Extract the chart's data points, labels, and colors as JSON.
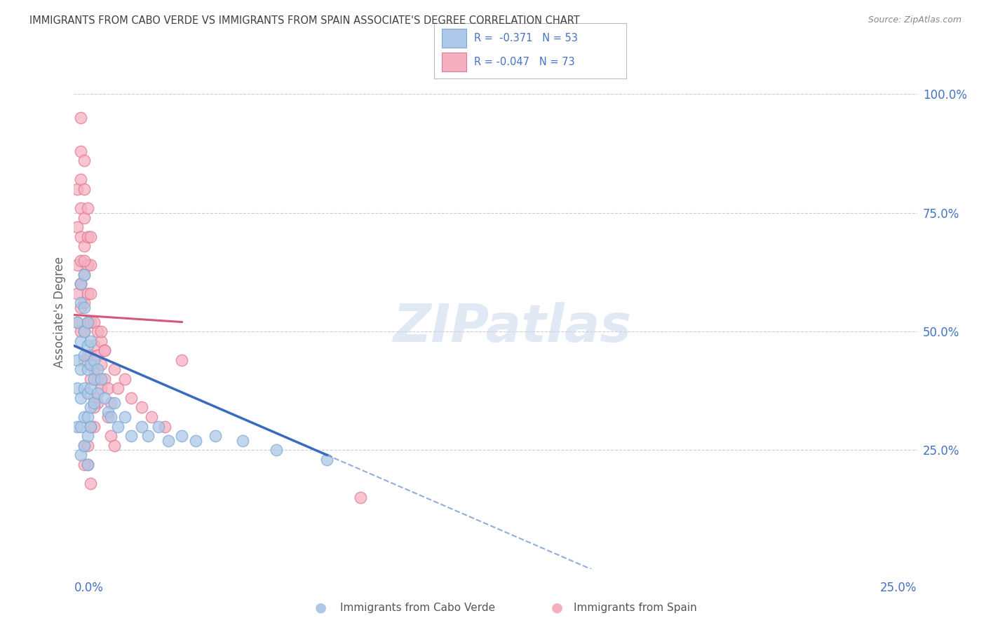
{
  "title": "IMMIGRANTS FROM CABO VERDE VS IMMIGRANTS FROM SPAIN ASSOCIATE'S DEGREE CORRELATION CHART",
  "source": "Source: ZipAtlas.com",
  "ylabel": "Associate's Degree",
  "ytick_labels": [
    "100.0%",
    "75.0%",
    "50.0%",
    "25.0%"
  ],
  "ytick_vals": [
    1.0,
    0.75,
    0.5,
    0.25
  ],
  "xtick_labels": [
    "0.0%",
    "25.0%"
  ],
  "xmin": 0.0,
  "xmax": 0.25,
  "ymin": 0.0,
  "ymax": 1.08,
  "legend_r1": "R =  -0.371",
  "legend_n1": "N = 53",
  "legend_r2": "R = -0.047",
  "legend_n2": "N = 73",
  "color_cabo_fill": "#adc8e8",
  "color_cabo_edge": "#7aaad0",
  "color_cabo_line": "#3a6abf",
  "color_spain_fill": "#f5b0c0",
  "color_spain_edge": "#e07898",
  "color_spain_line": "#d45878",
  "color_blue_text": "#4472c4",
  "color_title": "#404040",
  "color_source": "#888888",
  "color_grid": "#cccccc",
  "watermark_text": "ZIPatlas",
  "legend_label_cabo": "Immigrants from Cabo Verde",
  "legend_label_spain": "Immigrants from Spain",
  "cabo_x": [
    0.001,
    0.001,
    0.001,
    0.001,
    0.002,
    0.002,
    0.002,
    0.002,
    0.002,
    0.002,
    0.002,
    0.003,
    0.003,
    0.003,
    0.003,
    0.003,
    0.003,
    0.003,
    0.004,
    0.004,
    0.004,
    0.004,
    0.004,
    0.004,
    0.004,
    0.005,
    0.005,
    0.005,
    0.005,
    0.005,
    0.006,
    0.006,
    0.006,
    0.007,
    0.007,
    0.008,
    0.009,
    0.01,
    0.011,
    0.012,
    0.013,
    0.015,
    0.017,
    0.02,
    0.022,
    0.025,
    0.028,
    0.032,
    0.036,
    0.042,
    0.05,
    0.06,
    0.075
  ],
  "cabo_y": [
    0.44,
    0.52,
    0.38,
    0.3,
    0.56,
    0.48,
    0.42,
    0.36,
    0.3,
    0.24,
    0.6,
    0.55,
    0.5,
    0.45,
    0.38,
    0.32,
    0.26,
    0.62,
    0.52,
    0.47,
    0.42,
    0.37,
    0.32,
    0.28,
    0.22,
    0.48,
    0.43,
    0.38,
    0.34,
    0.3,
    0.44,
    0.4,
    0.35,
    0.42,
    0.37,
    0.4,
    0.36,
    0.33,
    0.32,
    0.35,
    0.3,
    0.32,
    0.28,
    0.3,
    0.28,
    0.3,
    0.27,
    0.28,
    0.27,
    0.28,
    0.27,
    0.25,
    0.23
  ],
  "spain_x": [
    0.001,
    0.001,
    0.001,
    0.001,
    0.001,
    0.002,
    0.002,
    0.002,
    0.002,
    0.002,
    0.002,
    0.002,
    0.002,
    0.003,
    0.003,
    0.003,
    0.003,
    0.003,
    0.003,
    0.003,
    0.003,
    0.004,
    0.004,
    0.004,
    0.004,
    0.004,
    0.004,
    0.005,
    0.005,
    0.005,
    0.005,
    0.005,
    0.005,
    0.006,
    0.006,
    0.006,
    0.006,
    0.006,
    0.007,
    0.007,
    0.007,
    0.007,
    0.008,
    0.008,
    0.008,
    0.009,
    0.009,
    0.01,
    0.011,
    0.012,
    0.013,
    0.015,
    0.017,
    0.02,
    0.023,
    0.027,
    0.032,
    0.003,
    0.004,
    0.005,
    0.002,
    0.003,
    0.004,
    0.005,
    0.006,
    0.085,
    0.01,
    0.011,
    0.012,
    0.008,
    0.009,
    0.002,
    0.003
  ],
  "spain_y": [
    0.52,
    0.58,
    0.64,
    0.72,
    0.8,
    0.55,
    0.6,
    0.65,
    0.7,
    0.76,
    0.82,
    0.88,
    0.5,
    0.56,
    0.62,
    0.68,
    0.74,
    0.8,
    0.86,
    0.5,
    0.44,
    0.52,
    0.58,
    0.64,
    0.7,
    0.76,
    0.45,
    0.52,
    0.58,
    0.64,
    0.7,
    0.45,
    0.4,
    0.52,
    0.47,
    0.42,
    0.36,
    0.3,
    0.5,
    0.45,
    0.4,
    0.35,
    0.48,
    0.43,
    0.38,
    0.46,
    0.4,
    0.38,
    0.35,
    0.42,
    0.38,
    0.4,
    0.36,
    0.34,
    0.32,
    0.3,
    0.44,
    0.26,
    0.22,
    0.18,
    0.95,
    0.22,
    0.26,
    0.3,
    0.34,
    0.15,
    0.32,
    0.28,
    0.26,
    0.5,
    0.46,
    0.6,
    0.65
  ]
}
